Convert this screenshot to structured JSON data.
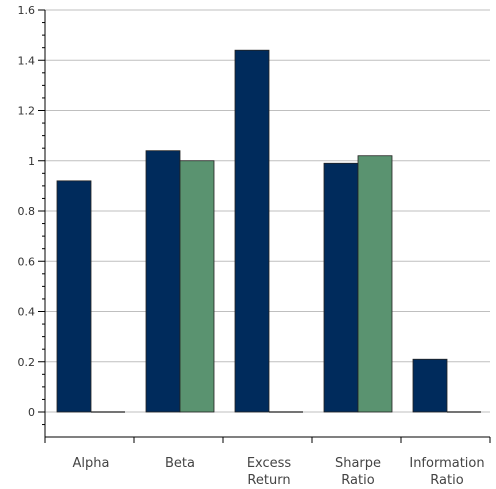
{
  "chart_data": {
    "type": "bar",
    "title": "",
    "xlabel": "",
    "ylabel": "",
    "categories": [
      [
        "Alpha"
      ],
      [
        "Beta"
      ],
      [
        "Excess",
        "Return"
      ],
      [
        "Sharpe",
        "Ratio"
      ],
      [
        "Information",
        "Ratio"
      ]
    ],
    "series": [
      {
        "values": [
          0.92,
          1.04,
          1.44,
          0.99,
          0.21
        ],
        "color": "#002b5c"
      },
      {
        "values": [
          0.0,
          1.0,
          0.0,
          1.02,
          0.0
        ],
        "color": "#5a9370"
      }
    ],
    "ylim": [
      -0.1,
      1.6
    ],
    "yticks": [
      "0",
      "0.2",
      "0.4",
      "0.6",
      "0.8",
      "1",
      "1.2",
      "1.4",
      "1.6"
    ],
    "ytick_values": [
      0,
      0.2,
      0.4,
      0.6,
      0.8,
      1.0,
      1.2,
      1.4,
      1.6
    ],
    "grid": true,
    "legend": "none"
  }
}
